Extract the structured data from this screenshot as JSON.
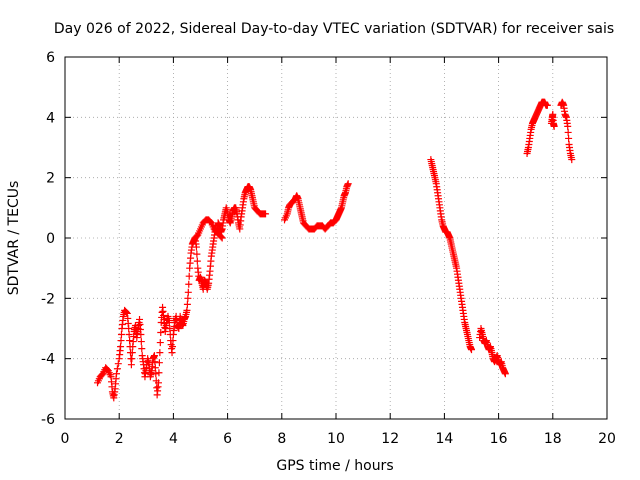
{
  "chart_data": {
    "type": "scatter",
    "title": "Day 026 of 2022, Sidereal Day-to-day VTEC variation (SDTVAR) for receiver sais",
    "xlabel": "GPS time / hours",
    "ylabel": "SDTVAR / TECUs",
    "xlim": [
      0,
      20
    ],
    "ylim": [
      -6,
      6
    ],
    "xticks": [
      "0",
      "2",
      "4",
      "6",
      "8",
      "10",
      "12",
      "14",
      "16",
      "18",
      "20"
    ],
    "yticks": [
      "-6",
      "-4",
      "-2",
      "0",
      "2",
      "4",
      "6"
    ],
    "grid": true,
    "marker": "+",
    "series": [
      {
        "name": "SDTVAR",
        "color": "#ff0000",
        "segments": [
          [
            [
              1.2,
              -4.8
            ],
            [
              1.3,
              -4.6
            ],
            [
              1.4,
              -4.5
            ],
            [
              1.5,
              -4.3
            ],
            [
              1.6,
              -4.4
            ],
            [
              1.7,
              -4.6
            ],
            [
              1.75,
              -5.1
            ],
            [
              1.8,
              -5.3
            ],
            [
              1.85,
              -5.0
            ],
            [
              1.9,
              -4.5
            ],
            [
              2.0,
              -4.0
            ],
            [
              2.05,
              -3.6
            ],
            [
              2.1,
              -3.0
            ],
            [
              2.15,
              -2.6
            ],
            [
              2.2,
              -2.4
            ],
            [
              2.3,
              -2.5
            ],
            [
              2.35,
              -3.0
            ],
            [
              2.4,
              -3.6
            ],
            [
              2.45,
              -4.2
            ],
            [
              2.5,
              -3.6
            ],
            [
              2.55,
              -3.1
            ],
            [
              2.6,
              -2.9
            ],
            [
              2.65,
              -3.3
            ],
            [
              2.7,
              -3.0
            ],
            [
              2.75,
              -2.7
            ],
            [
              2.8,
              -3.2
            ],
            [
              2.85,
              -3.9
            ],
            [
              2.9,
              -4.2
            ],
            [
              2.95,
              -4.6
            ],
            [
              3.0,
              -4.3
            ],
            [
              3.05,
              -4.0
            ],
            [
              3.1,
              -4.2
            ],
            [
              3.15,
              -4.6
            ],
            [
              3.2,
              -4.4
            ],
            [
              3.25,
              -4.0
            ],
            [
              3.3,
              -3.9
            ],
            [
              3.35,
              -4.5
            ],
            [
              3.4,
              -5.2
            ],
            [
              3.45,
              -4.8
            ],
            [
              3.5,
              -3.8
            ],
            [
              3.55,
              -2.8
            ],
            [
              3.6,
              -2.3
            ],
            [
              3.65,
              -2.7
            ],
            [
              3.7,
              -3.1
            ],
            [
              3.75,
              -2.8
            ],
            [
              3.8,
              -2.6
            ],
            [
              3.85,
              -2.8
            ],
            [
              3.9,
              -3.4
            ],
            [
              3.95,
              -3.8
            ],
            [
              4.0,
              -3.2
            ],
            [
              4.05,
              -2.8
            ],
            [
              4.1,
              -2.6
            ],
            [
              4.15,
              -2.9
            ],
            [
              4.2,
              -3.0
            ],
            [
              4.25,
              -2.6
            ],
            [
              4.3,
              -2.8
            ],
            [
              4.35,
              -2.9
            ],
            [
              4.4,
              -2.7
            ],
            [
              4.45,
              -2.6
            ],
            [
              4.5,
              -2.4
            ],
            [
              4.55,
              -1.8
            ],
            [
              4.6,
              -1.0
            ],
            [
              4.65,
              -0.5
            ],
            [
              4.7,
              -0.2
            ],
            [
              4.75,
              -0.1
            ],
            [
              4.8,
              0.0
            ],
            [
              4.85,
              -0.3
            ],
            [
              4.9,
              -1.0
            ],
            [
              4.95,
              -1.4
            ],
            [
              5.0,
              -1.3
            ],
            [
              5.05,
              -1.5
            ],
            [
              5.1,
              -1.7
            ],
            [
              5.15,
              -1.4
            ],
            [
              5.2,
              -1.5
            ],
            [
              5.25,
              -1.7
            ],
            [
              5.3,
              -1.5
            ],
            [
              5.35,
              -1.1
            ],
            [
              5.4,
              -0.6
            ],
            [
              5.45,
              -0.3
            ],
            [
              5.5,
              0.0
            ],
            [
              5.55,
              0.3
            ],
            [
              5.6,
              0.2
            ],
            [
              5.65,
              0.5
            ],
            [
              5.7,
              0.4
            ],
            [
              5.75,
              0.2
            ],
            [
              5.8,
              0.3
            ],
            [
              5.85,
              0.6
            ],
            [
              5.9,
              0.8
            ],
            [
              5.95,
              1.0
            ],
            [
              6.0,
              0.8
            ],
            [
              6.05,
              0.6
            ],
            [
              6.1,
              0.5
            ],
            [
              6.15,
              0.7
            ],
            [
              6.2,
              0.9
            ],
            [
              6.25,
              1.0
            ],
            [
              6.3,
              1.0
            ],
            [
              6.35,
              0.8
            ],
            [
              6.4,
              0.5
            ],
            [
              6.45,
              0.3
            ],
            [
              6.5,
              0.7
            ],
            [
              6.55,
              1.0
            ],
            [
              6.6,
              1.3
            ],
            [
              6.65,
              1.5
            ],
            [
              6.7,
              1.6
            ],
            [
              6.75,
              1.7
            ],
            [
              6.8,
              1.7
            ],
            [
              6.85,
              1.6
            ],
            [
              6.9,
              1.4
            ],
            [
              6.95,
              1.2
            ],
            [
              7.0,
              1.0
            ],
            [
              7.1,
              0.9
            ],
            [
              7.2,
              0.8
            ],
            [
              7.3,
              0.8
            ],
            [
              7.4,
              0.8
            ]
          ],
          [
            [
              4.8,
              0.0
            ],
            [
              4.9,
              0.1
            ],
            [
              5.0,
              0.3
            ],
            [
              5.1,
              0.5
            ],
            [
              5.2,
              0.6
            ],
            [
              5.3,
              0.6
            ],
            [
              5.4,
              0.5
            ],
            [
              5.5,
              0.3
            ],
            [
              5.6,
              0.2
            ],
            [
              5.7,
              0.1
            ],
            [
              5.8,
              0.0
            ]
          ],
          [
            [
              8.1,
              0.6
            ],
            [
              8.2,
              0.8
            ],
            [
              8.25,
              1.0
            ],
            [
              8.3,
              1.1
            ],
            [
              8.4,
              1.2
            ],
            [
              8.5,
              1.3
            ],
            [
              8.55,
              1.4
            ],
            [
              8.6,
              1.3
            ],
            [
              8.65,
              1.1
            ],
            [
              8.7,
              0.9
            ],
            [
              8.75,
              0.7
            ],
            [
              8.8,
              0.5
            ],
            [
              8.9,
              0.4
            ],
            [
              9.0,
              0.3
            ],
            [
              9.1,
              0.3
            ],
            [
              9.2,
              0.3
            ],
            [
              9.3,
              0.4
            ],
            [
              9.4,
              0.4
            ],
            [
              9.5,
              0.4
            ],
            [
              9.6,
              0.3
            ],
            [
              9.7,
              0.4
            ],
            [
              9.8,
              0.5
            ],
            [
              9.9,
              0.5
            ],
            [
              10.0,
              0.6
            ],
            [
              10.05,
              0.7
            ],
            [
              10.1,
              0.8
            ],
            [
              10.15,
              0.9
            ],
            [
              10.2,
              1.0
            ],
            [
              10.25,
              1.2
            ],
            [
              10.3,
              1.4
            ],
            [
              10.35,
              1.5
            ],
            [
              10.4,
              1.7
            ],
            [
              10.45,
              1.8
            ]
          ],
          [
            [
              13.5,
              2.6
            ],
            [
              13.55,
              2.4
            ],
            [
              13.6,
              2.2
            ],
            [
              13.65,
              2.0
            ],
            [
              13.7,
              1.8
            ],
            [
              13.75,
              1.5
            ],
            [
              13.8,
              1.2
            ],
            [
              13.85,
              0.9
            ],
            [
              13.9,
              0.6
            ],
            [
              13.95,
              0.4
            ],
            [
              14.0,
              0.3
            ],
            [
              14.05,
              0.2
            ],
            [
              14.1,
              0.2
            ],
            [
              14.15,
              0.1
            ],
            [
              14.2,
              0.0
            ],
            [
              14.25,
              -0.2
            ],
            [
              14.3,
              -0.4
            ],
            [
              14.35,
              -0.6
            ],
            [
              14.4,
              -0.8
            ],
            [
              14.45,
              -1.0
            ],
            [
              14.5,
              -1.3
            ],
            [
              14.55,
              -1.6
            ],
            [
              14.6,
              -1.9
            ],
            [
              14.65,
              -2.2
            ],
            [
              14.7,
              -2.5
            ],
            [
              14.75,
              -2.8
            ],
            [
              14.8,
              -3.0
            ],
            [
              14.85,
              -3.2
            ],
            [
              14.9,
              -3.4
            ],
            [
              14.95,
              -3.6
            ],
            [
              15.0,
              -3.7
            ]
          ],
          [
            [
              15.3,
              -3.3
            ],
            [
              15.35,
              -3.0
            ],
            [
              15.4,
              -3.2
            ],
            [
              15.45,
              -3.4
            ],
            [
              15.5,
              -3.5
            ],
            [
              15.55,
              -3.4
            ],
            [
              15.6,
              -3.6
            ],
            [
              15.65,
              -3.7
            ],
            [
              15.7,
              -3.6
            ],
            [
              15.75,
              -3.8
            ],
            [
              15.8,
              -4.0
            ],
            [
              15.85,
              -4.1
            ],
            [
              15.9,
              -4.0
            ],
            [
              15.95,
              -3.9
            ],
            [
              16.0,
              -4.1
            ],
            [
              16.05,
              -4.2
            ],
            [
              16.1,
              -4.1
            ],
            [
              16.15,
              -4.3
            ],
            [
              16.2,
              -4.4
            ],
            [
              16.25,
              -4.5
            ]
          ],
          [
            [
              17.05,
              2.8
            ],
            [
              17.1,
              3.0
            ],
            [
              17.15,
              3.3
            ],
            [
              17.2,
              3.6
            ],
            [
              17.25,
              3.8
            ],
            [
              17.3,
              3.9
            ],
            [
              17.35,
              4.0
            ],
            [
              17.4,
              4.1
            ],
            [
              17.45,
              4.2
            ],
            [
              17.5,
              4.3
            ],
            [
              17.55,
              4.4
            ],
            [
              17.6,
              4.5
            ],
            [
              17.65,
              4.5
            ],
            [
              17.7,
              4.5
            ],
            [
              17.75,
              4.4
            ],
            [
              17.8,
              4.4
            ]
          ],
          [
            [
              17.95,
              3.8
            ],
            [
              17.98,
              4.0
            ],
            [
              18.0,
              4.1
            ],
            [
              18.02,
              3.8
            ],
            [
              18.05,
              3.7
            ]
          ],
          [
            [
              18.3,
              4.4
            ],
            [
              18.35,
              4.5
            ],
            [
              18.4,
              4.4
            ],
            [
              18.45,
              4.1
            ],
            [
              18.5,
              4.0
            ],
            [
              18.55,
              3.7
            ],
            [
              18.6,
              3.1
            ],
            [
              18.65,
              2.8
            ],
            [
              18.7,
              2.6
            ]
          ]
        ]
      }
    ]
  }
}
